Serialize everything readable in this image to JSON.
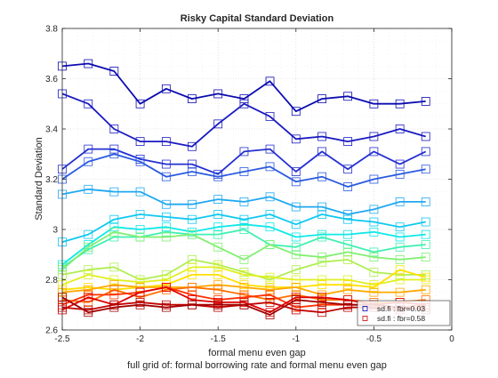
{
  "chart_data": {
    "type": "line",
    "title": "Risky Capital Standard Deviation",
    "xlabel": "formal menu even gap",
    "ylabel": "Standard Deviation",
    "caption": "full grid of: formal borrowing rate and formal menu even gap",
    "xlim": [
      -2.5,
      0
    ],
    "ylim": [
      2.6,
      3.8
    ],
    "xticks": [
      -2.5,
      -2,
      -1.5,
      -1,
      -0.5,
      0
    ],
    "xtick_labels": [
      "-2.5",
      "-2",
      "-1.5",
      "-1",
      "-0.5",
      "0"
    ],
    "yticks": [
      2.6,
      2.8,
      3.0,
      3.2,
      3.4,
      3.6,
      3.8
    ],
    "ytick_labels": [
      "2.6",
      "2.8",
      "3",
      "3.2",
      "3.4",
      "3.6",
      "3.8"
    ],
    "grid": "dotted",
    "marker": "square",
    "legend_position": "bottom-right",
    "legend": [
      {
        "label": "sd.fi : fbr=0.03",
        "color": "#0000b4"
      },
      {
        "label": "sd.fi : fbr=0.58",
        "color": "#c80000"
      }
    ],
    "x": [
      -2.5,
      -2.333,
      -2.167,
      -2.0,
      -1.833,
      -1.667,
      -1.5,
      -1.333,
      -1.167,
      -1.0,
      -0.833,
      -0.667,
      -0.5,
      -0.333,
      -0.167
    ],
    "series": [
      {
        "color": "#0b0bb0",
        "values": [
          3.65,
          3.66,
          3.63,
          3.5,
          3.56,
          3.52,
          3.54,
          3.52,
          3.59,
          3.47,
          3.52,
          3.53,
          3.5,
          3.5,
          3.51
        ]
      },
      {
        "color": "#1a1ac0",
        "values": [
          3.54,
          3.5,
          3.4,
          3.35,
          3.35,
          3.33,
          3.42,
          3.5,
          3.45,
          3.36,
          3.37,
          3.35,
          3.37,
          3.4,
          3.37
        ]
      },
      {
        "color": "#2530d0",
        "values": [
          3.24,
          3.32,
          3.32,
          3.28,
          3.26,
          3.26,
          3.22,
          3.31,
          3.32,
          3.23,
          3.31,
          3.24,
          3.31,
          3.26,
          3.31
        ]
      },
      {
        "color": "#2a5ae0",
        "values": [
          3.2,
          3.27,
          3.3,
          3.27,
          3.21,
          3.23,
          3.21,
          3.23,
          3.25,
          3.19,
          3.21,
          3.17,
          3.2,
          3.22,
          3.24
        ]
      },
      {
        "color": "#20a8f0",
        "values": [
          3.14,
          3.16,
          3.15,
          3.15,
          3.1,
          3.1,
          3.12,
          3.11,
          3.13,
          3.09,
          3.09,
          3.06,
          3.08,
          3.11,
          3.11
        ]
      },
      {
        "color": "#10c8f0",
        "values": [
          2.95,
          2.98,
          3.04,
          3.06,
          3.05,
          3.04,
          3.06,
          3.04,
          3.06,
          3.02,
          3.06,
          3.04,
          3.03,
          3.01,
          3.03
        ]
      },
      {
        "color": "#10e8e8",
        "values": [
          2.86,
          2.94,
          3.01,
          3.0,
          3.01,
          2.99,
          3.01,
          3.02,
          3.01,
          2.97,
          2.98,
          2.98,
          2.99,
          2.97,
          2.98
        ]
      },
      {
        "color": "#40f0b0",
        "values": [
          2.85,
          2.92,
          2.97,
          2.97,
          2.99,
          2.98,
          2.98,
          3.0,
          2.94,
          2.93,
          2.97,
          2.94,
          2.91,
          2.93,
          2.94
        ]
      },
      {
        "color": "#80f070",
        "values": [
          2.84,
          2.93,
          2.99,
          2.97,
          2.97,
          2.98,
          2.93,
          2.88,
          2.94,
          2.9,
          2.89,
          2.91,
          2.89,
          2.88,
          2.89
        ]
      },
      {
        "color": "#b0ee50",
        "values": [
          2.82,
          2.84,
          2.85,
          2.8,
          2.82,
          2.88,
          2.86,
          2.83,
          2.8,
          2.84,
          2.87,
          2.88,
          2.83,
          2.82,
          2.82
        ]
      },
      {
        "color": "#e0f020",
        "values": [
          2.78,
          2.82,
          2.8,
          2.79,
          2.8,
          2.85,
          2.85,
          2.82,
          2.81,
          2.8,
          2.8,
          2.8,
          2.78,
          2.8,
          2.8
        ]
      },
      {
        "color": "#ffe000",
        "values": [
          2.76,
          2.77,
          2.76,
          2.77,
          2.78,
          2.82,
          2.82,
          2.78,
          2.77,
          2.77,
          2.78,
          2.78,
          2.77,
          2.84,
          2.81
        ]
      },
      {
        "color": "#ffa800",
        "values": [
          2.75,
          2.76,
          2.78,
          2.77,
          2.77,
          2.77,
          2.78,
          2.77,
          2.76,
          2.77,
          2.74,
          2.76,
          2.75,
          2.75,
          2.76
        ]
      },
      {
        "color": "#ff7000",
        "values": [
          2.72,
          2.71,
          2.76,
          2.73,
          2.76,
          2.77,
          2.76,
          2.74,
          2.72,
          2.74,
          2.72,
          2.72,
          2.71,
          2.71,
          2.72
        ]
      },
      {
        "color": "#ff3000",
        "values": [
          2.7,
          2.74,
          2.74,
          2.75,
          2.77,
          2.74,
          2.72,
          2.73,
          2.74,
          2.69,
          2.7,
          2.7,
          2.7,
          2.69,
          2.7
        ]
      },
      {
        "color": "#e00000",
        "values": [
          2.68,
          2.73,
          2.7,
          2.75,
          2.77,
          2.72,
          2.71,
          2.71,
          2.67,
          2.73,
          2.73,
          2.72,
          2.7,
          2.71,
          2.7
        ]
      },
      {
        "color": "#c00000",
        "values": [
          2.69,
          2.68,
          2.7,
          2.71,
          2.7,
          2.7,
          2.69,
          2.7,
          2.71,
          2.68,
          2.67,
          2.69,
          2.69,
          2.68,
          2.69
        ]
      },
      {
        "color": "#a00000",
        "values": [
          2.73,
          2.67,
          2.69,
          2.7,
          2.69,
          2.7,
          2.7,
          2.7,
          2.66,
          2.72,
          2.71,
          2.7,
          2.7,
          2.69,
          2.68
        ]
      }
    ]
  }
}
